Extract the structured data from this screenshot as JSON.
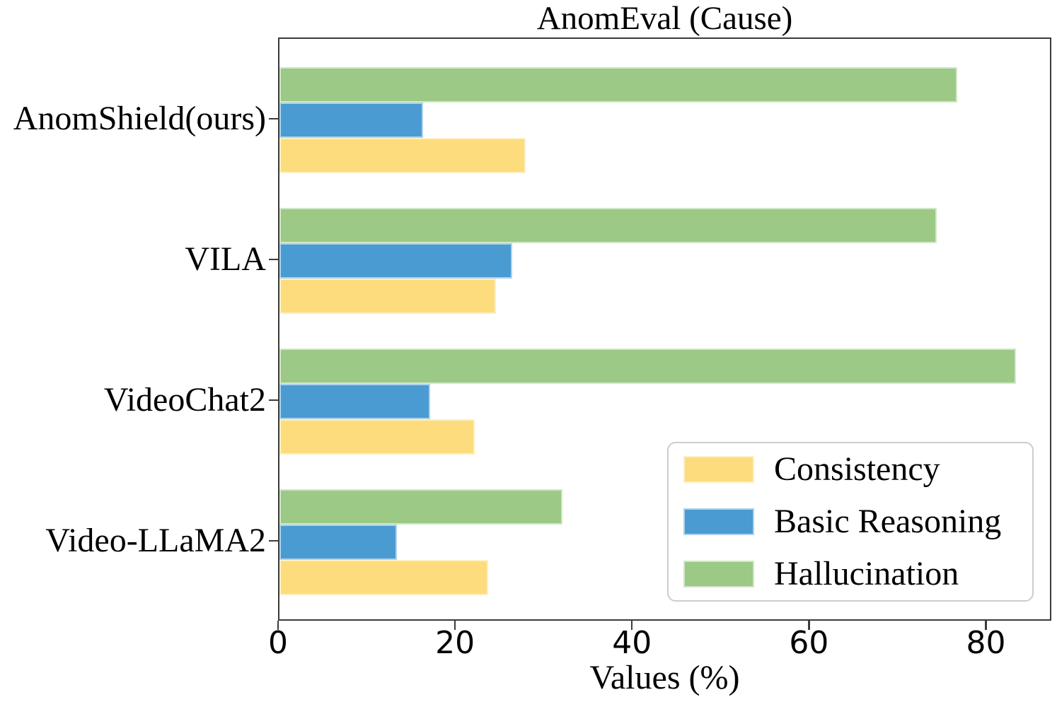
{
  "chart_data": {
    "type": "bar",
    "orientation": "horizontal",
    "title": "AnomEval (Cause)",
    "xlabel": "Values (%)",
    "categories": [
      "AnomShield(ours)",
      "VILA",
      "VideoChat2",
      "Video-LLaMA2"
    ],
    "series": [
      {
        "name": "Consistency",
        "color": "#FCDC7D",
        "values": [
          27.8,
          24.5,
          22.1,
          23.6
        ]
      },
      {
        "name": "Basic Reasoning",
        "color": "#4A9BD2",
        "values": [
          16.2,
          26.3,
          17.0,
          13.3
        ]
      },
      {
        "name": "Hallucination",
        "color": "#9CC986",
        "values": [
          76.6,
          74.3,
          83.2,
          32.0
        ]
      }
    ],
    "x_ticks": [
      0,
      20,
      40,
      60,
      80
    ],
    "xlim": [
      0,
      87.4
    ],
    "grid": false,
    "legend_position": "lower right",
    "bar_order_top_to_bottom": [
      "Hallucination",
      "Basic Reasoning",
      "Consistency"
    ],
    "axis_color": "#3b3b3b",
    "legend_border_color": "#cccccc",
    "background_color": "#ffffff"
  }
}
